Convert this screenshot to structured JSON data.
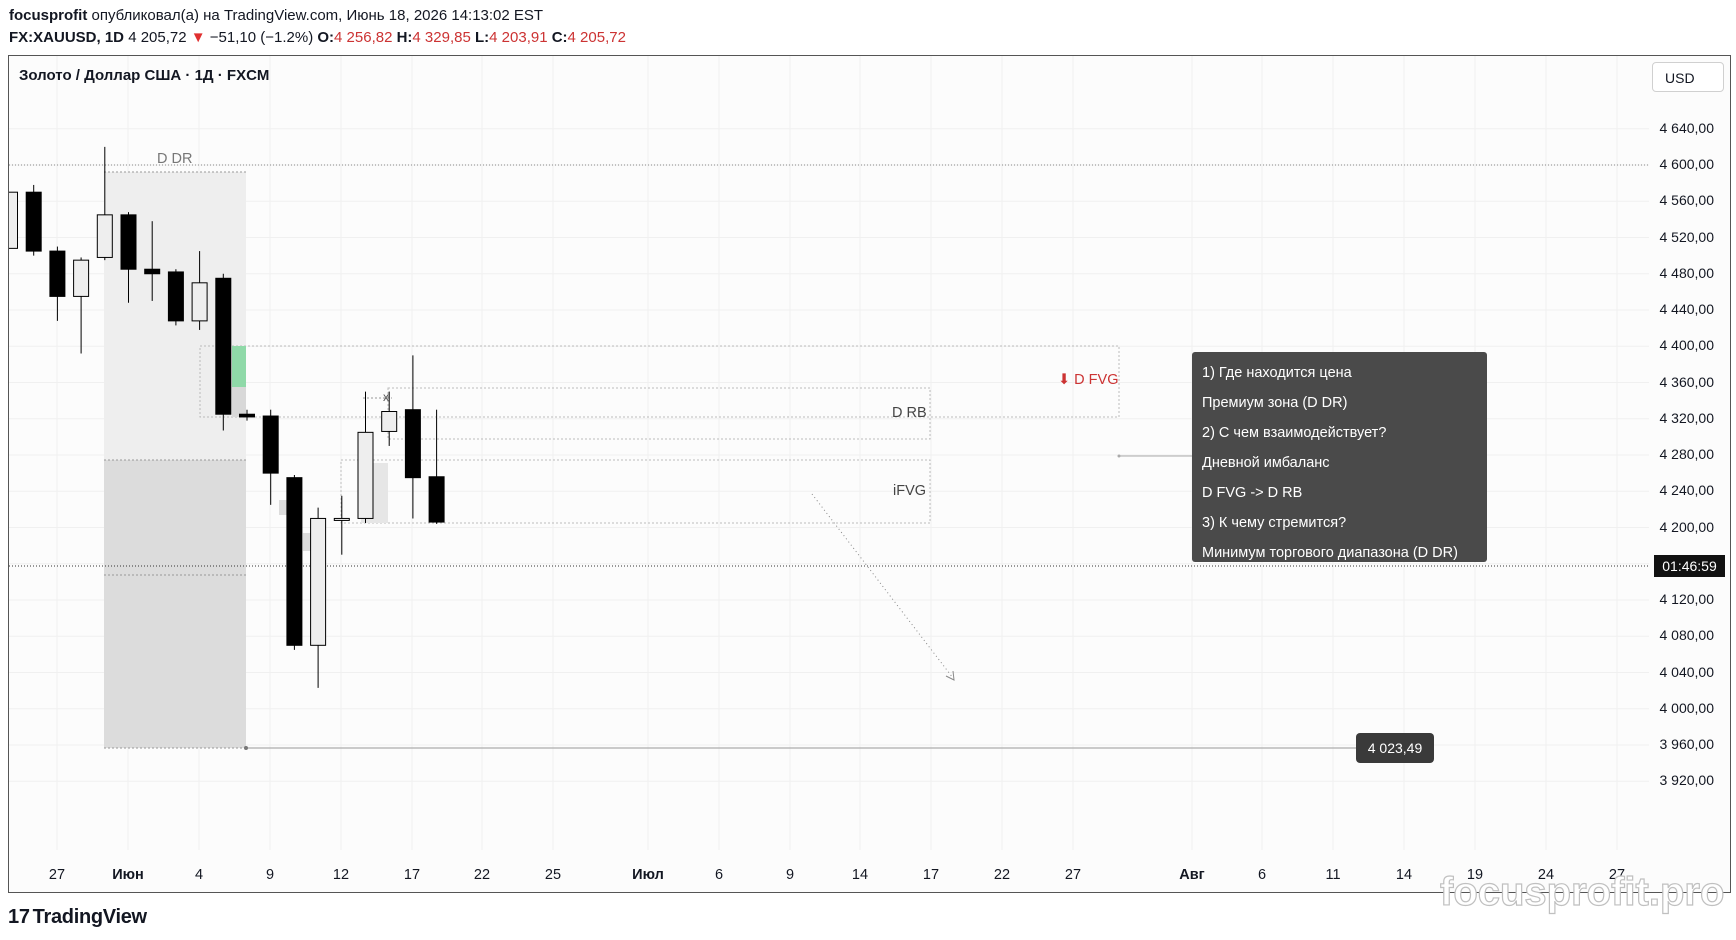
{
  "header": {
    "author": "focusprofit",
    "published_text": " опубликовал(а) на TradingView.com, Июнь 18, 2026 14:13:02 EST",
    "symbol": "FX:XAUUSD, 1D",
    "last_price": "4 205,72",
    "change_arrow": "▼",
    "change": "−51,10 (−1.2%)",
    "o_label": "O:",
    "o_value": "4 256,82",
    "h_label": "H:",
    "h_value": "4 329,85",
    "l_label": "L:",
    "l_value": "4 203,91",
    "c_label": "C:",
    "c_value": "4 205,72"
  },
  "pane": {
    "title": "Золото / Доллар США · 1Д · FXCM",
    "currency_button": "USD"
  },
  "annotations": {
    "ddr": "D DR",
    "dfvg": "⬇ D FVG",
    "drb": "D RB",
    "ifvg": "iFVG",
    "x_mark": "x",
    "level_value": "4 023,49",
    "countdown": "01:46:59"
  },
  "note": {
    "lines": [
      "1) Где находится цена",
      "Премиум зона  (D DR)",
      "2)  С чем взаимодействует?",
      "Дневной имбаланс",
      "D FVG ->  D RB",
      "3) К чему стремится?",
      "Минимум торгового диапазона  (D DR)"
    ]
  },
  "footer": {
    "logo_mark": "17",
    "logo_text": "TradingView",
    "watermark": "focusprofit.pro"
  },
  "colors": {
    "bull_fill": "#eeeeee",
    "bear_fill": "#000000",
    "fvg_green": "#8fd9a8",
    "dr_gray": "#e6e6e6",
    "red_text": "#cc3333"
  },
  "chart_data": {
    "type": "candlestick",
    "y_range": [
      3900,
      4680
    ],
    "price_axis": [
      "4 640,00",
      "4 600,00",
      "4 560,00",
      "4 520,00",
      "4 480,00",
      "4 440,00",
      "4 400,00",
      "4 360,00",
      "4 320,00",
      "4 280,00",
      "4 240,00",
      "4 200,00",
      "4 160,00",
      "4 120,00",
      "4 080,00",
      "4 040,00",
      "4 000,00",
      "3 960,00",
      "3 920,00"
    ],
    "x_axis": [
      {
        "label": "27",
        "bold": false
      },
      {
        "label": "Июн",
        "bold": true
      },
      {
        "label": "4",
        "bold": false
      },
      {
        "label": "9",
        "bold": false
      },
      {
        "label": "12",
        "bold": false
      },
      {
        "label": "17",
        "bold": false
      },
      {
        "label": "22",
        "bold": false
      },
      {
        "label": "25",
        "bold": false
      },
      {
        "label": "Июл",
        "bold": true
      },
      {
        "label": "6",
        "bold": false
      },
      {
        "label": "9",
        "bold": false
      },
      {
        "label": "14",
        "bold": false
      },
      {
        "label": "17",
        "bold": false
      },
      {
        "label": "22",
        "bold": false
      },
      {
        "label": "27",
        "bold": false
      },
      {
        "label": "Авг",
        "bold": true
      },
      {
        "label": "6",
        "bold": false
      },
      {
        "label": "11",
        "bold": false
      },
      {
        "label": "14",
        "bold": false
      },
      {
        "label": "19",
        "bold": false
      },
      {
        "label": "24",
        "bold": false
      },
      {
        "label": "27",
        "bold": false
      }
    ],
    "candles": [
      {
        "o": 4508,
        "h": 4570,
        "l": 4508,
        "c": 4570
      },
      {
        "o": 4570,
        "h": 4578,
        "l": 4500,
        "c": 4505
      },
      {
        "o": 4505,
        "h": 4510,
        "l": 4428,
        "c": 4455
      },
      {
        "o": 4455,
        "h": 4498,
        "l": 4392,
        "c": 4495
      },
      {
        "o": 4498,
        "h": 4620,
        "l": 4495,
        "c": 4545
      },
      {
        "o": 4545,
        "h": 4548,
        "l": 4448,
        "c": 4485
      },
      {
        "o": 4485,
        "h": 4538,
        "l": 4450,
        "c": 4480
      },
      {
        "o": 4482,
        "h": 4485,
        "l": 4423,
        "c": 4428
      },
      {
        "o": 4428,
        "h": 4505,
        "l": 4418,
        "c": 4470
      },
      {
        "o": 4475,
        "h": 4480,
        "l": 4307,
        "c": 4325
      },
      {
        "o": 4325,
        "h": 4330,
        "l": 4318,
        "c": 4322
      },
      {
        "o": 4323,
        "h": 4330,
        "l": 4225,
        "c": 4260
      },
      {
        "o": 4255,
        "h": 4258,
        "l": 4065,
        "c": 4070
      },
      {
        "o": 4070,
        "h": 4222,
        "l": 4023,
        "c": 4210
      },
      {
        "o": 4210,
        "h": 4235,
        "l": 4170,
        "c": 4210
      },
      {
        "o": 4210,
        "h": 4350,
        "l": 4205,
        "c": 4305
      },
      {
        "o": 4306,
        "h": 4350,
        "l": 4290,
        "c": 4328
      },
      {
        "o": 4330,
        "h": 4390,
        "l": 4210,
        "c": 4255
      },
      {
        "o": 4256,
        "h": 4330,
        "l": 4204,
        "c": 4206
      }
    ]
  }
}
